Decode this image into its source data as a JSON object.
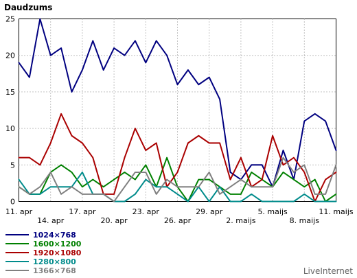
{
  "chart_data": {
    "type": "line",
    "title": "Daudzums",
    "ylim": [
      0,
      25
    ],
    "yticks": [
      0,
      5,
      10,
      15,
      20,
      25
    ],
    "grid": true,
    "x_labels": [
      "11. apr",
      "14. apr",
      "17. apr",
      "20. apr",
      "23. apr",
      "26. apr",
      "29. apr",
      "2. maijs",
      "5. maijs",
      "8. maijs",
      "11. maijs"
    ],
    "label_every": 3,
    "series": [
      {
        "name": "1024×768",
        "color": "#000080",
        "values": [
          19,
          17,
          25,
          20,
          21,
          15,
          18,
          22,
          18,
          21,
          20,
          22,
          19,
          22,
          20,
          16,
          18,
          16,
          17,
          14,
          4,
          3,
          5,
          5,
          2,
          7,
          3,
          11,
          12,
          11,
          7
        ]
      },
      {
        "name": "1600×1200",
        "color": "#008000",
        "values": [
          2,
          1,
          1,
          4,
          5,
          4,
          2,
          3,
          2,
          3,
          4,
          3,
          5,
          2,
          6,
          2,
          0,
          3,
          3,
          2,
          1,
          1,
          4,
          3,
          2,
          4,
          3,
          2,
          3,
          0,
          1
        ]
      },
      {
        "name": "1920×1080",
        "color": "#aa0000",
        "values": [
          6,
          6,
          5,
          8,
          12,
          9,
          8,
          6,
          1,
          1,
          6,
          10,
          7,
          8,
          2,
          4,
          8,
          9,
          8,
          8,
          3,
          6,
          2,
          3,
          9,
          5,
          6,
          4,
          0,
          3,
          4
        ]
      },
      {
        "name": "1280×800",
        "color": "#008b8b",
        "values": [
          3,
          1,
          1,
          2,
          2,
          2,
          4,
          1,
          1,
          0,
          0,
          1,
          3,
          2,
          2,
          1,
          0,
          2,
          0,
          2,
          0,
          0,
          1,
          0,
          0,
          0,
          0,
          1,
          0,
          0,
          0
        ]
      },
      {
        "name": "1366×768",
        "color": "#808080",
        "values": [
          2,
          1,
          2,
          4,
          1,
          2,
          1,
          1,
          1,
          0,
          2,
          4,
          4,
          1,
          3,
          2,
          2,
          2,
          4,
          1,
          2,
          3,
          2,
          2,
          2,
          6,
          4,
          5,
          1,
          1,
          5
        ]
      }
    ]
  },
  "watermark": "LiveInternet"
}
